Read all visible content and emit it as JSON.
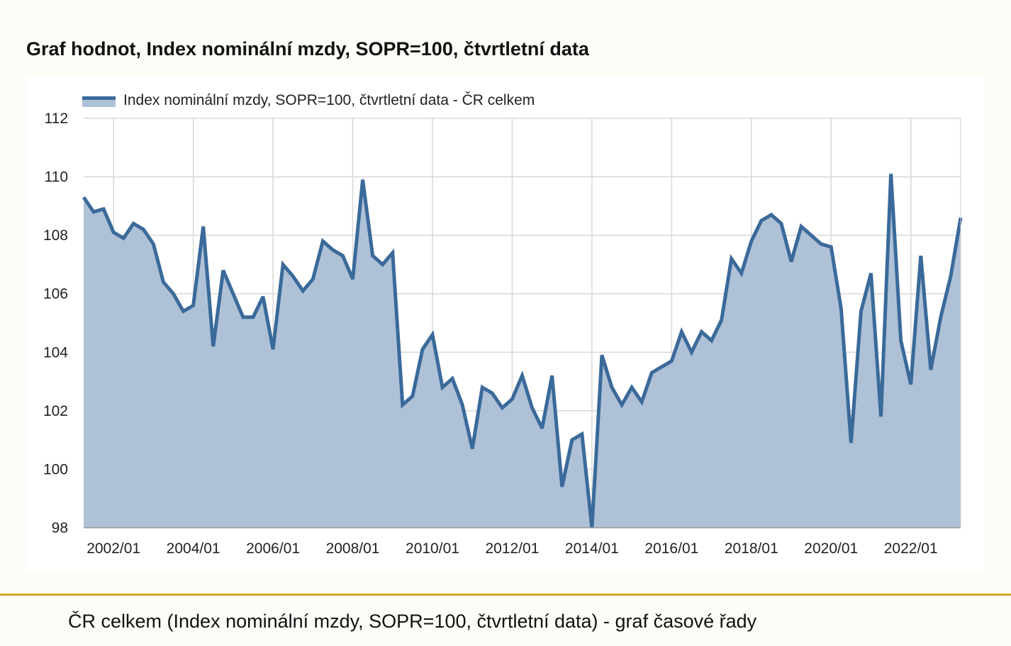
{
  "page": {
    "title": "Graf hodnot, Index nominální mzdy, SOPR=100, čtvrtletní data",
    "caption": "ČR celkem (Index nominální mzdy, SOPR=100, čtvrtletní data) - graf časové řady"
  },
  "colors": {
    "line": "#3a6a9a",
    "area": "#aec1d6",
    "grid": "#d8d8d8",
    "accent_divider": "#d5a72a"
  },
  "chart_data": {
    "type": "area",
    "title": "",
    "xlabel": "",
    "ylabel": "",
    "ylim": [
      98,
      112
    ],
    "yticks": [
      98,
      100,
      102,
      104,
      106,
      108,
      110,
      112
    ],
    "xticks": [
      "2002/01",
      "2004/01",
      "2006/01",
      "2008/01",
      "2010/01",
      "2012/01",
      "2014/01",
      "2016/01",
      "2018/01",
      "2020/01",
      "2022/01"
    ],
    "grid": true,
    "legend_position": "top-left",
    "first_period": "2001/02",
    "frequency": "quarterly",
    "series": [
      {
        "name": "Index nominální mzdy, SOPR=100, čtvrtletní data - ČR celkem",
        "values": [
          109.3,
          108.8,
          108.9,
          108.1,
          107.9,
          108.4,
          108.2,
          107.7,
          106.4,
          106.0,
          105.4,
          105.6,
          108.3,
          104.2,
          106.8,
          106.0,
          105.2,
          105.2,
          105.9,
          104.1,
          107.0,
          106.6,
          106.1,
          106.5,
          107.8,
          107.5,
          107.3,
          106.5,
          109.9,
          107.3,
          107.0,
          107.4,
          102.2,
          102.5,
          104.1,
          104.6,
          102.8,
          103.1,
          102.2,
          100.7,
          102.8,
          102.6,
          102.1,
          102.4,
          103.2,
          102.1,
          101.4,
          103.2,
          99.4,
          101.0,
          101.2,
          98.0,
          103.9,
          102.8,
          102.2,
          102.8,
          102.3,
          103.3,
          103.5,
          103.7,
          104.7,
          104.0,
          104.7,
          104.4,
          105.1,
          107.2,
          106.7,
          107.8,
          108.5,
          108.7,
          108.4,
          107.1,
          108.3,
          108.0,
          107.7,
          107.6,
          105.5,
          100.9,
          105.4,
          106.7,
          101.8,
          110.1,
          104.4,
          102.9,
          107.3,
          103.4,
          105.2,
          106.6,
          108.6
        ]
      }
    ]
  }
}
